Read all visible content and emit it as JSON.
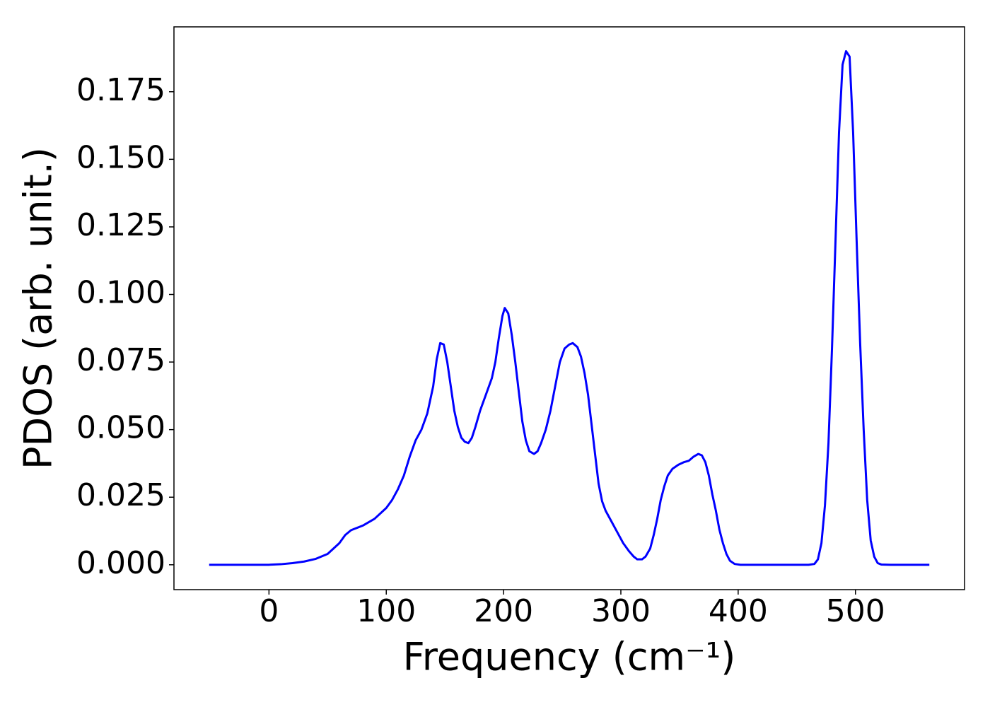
{
  "chart_data": {
    "type": "line",
    "xlabel": "Frequency (cm⁻¹)",
    "ylabel": "PDOS (arb. unit.)",
    "xlim": [
      -81,
      593
    ],
    "ylim": [
      -0.0092,
      0.199
    ],
    "xticks": [
      0,
      100,
      200,
      300,
      400,
      500
    ],
    "yticks": [
      {
        "value": 0,
        "label": "0.000"
      },
      {
        "value": 0.025,
        "label": "0.025"
      },
      {
        "value": 0.05,
        "label": "0.050"
      },
      {
        "value": 0.075,
        "label": "0.075"
      },
      {
        "value": 0.1,
        "label": "0.100"
      },
      {
        "value": 0.125,
        "label": "0.125"
      },
      {
        "value": 0.15,
        "label": "0.150"
      },
      {
        "value": 0.175,
        "label": "0.175"
      }
    ],
    "grid": false,
    "series": [
      {
        "color": "#0000ff",
        "x": [
          -51,
          -20,
          0,
          10,
          20,
          30,
          40,
          50,
          55,
          60,
          65,
          70,
          80,
          90,
          100,
          105,
          110,
          115,
          120,
          125,
          130,
          135,
          140,
          143,
          146,
          149,
          152,
          155,
          158,
          161,
          164,
          167,
          170,
          173,
          176,
          180,
          185,
          190,
          193,
          196,
          199,
          201,
          204,
          207,
          210,
          213,
          216,
          219,
          222,
          226,
          229,
          232,
          236,
          240,
          244,
          248,
          252,
          256,
          259,
          263,
          266,
          269,
          272,
          275,
          278,
          281,
          284,
          287,
          292,
          297,
          302,
          307,
          311,
          314,
          318,
          321,
          325,
          328,
          331,
          334,
          337,
          340,
          344,
          349,
          354,
          358,
          362,
          366,
          369,
          372,
          375,
          378,
          381,
          384,
          387,
          390,
          393,
          397,
          402,
          420,
          440,
          460,
          465,
          468,
          471,
          474,
          477,
          480,
          483,
          486,
          489,
          492,
          495,
          498,
          501,
          504,
          507,
          510,
          513,
          516,
          519,
          522,
          530,
          563
        ],
        "values": [
          0,
          0,
          0,
          0.0002,
          0.0006,
          0.0012,
          0.0022,
          0.004,
          0.006,
          0.008,
          0.011,
          0.0128,
          0.0145,
          0.017,
          0.021,
          0.024,
          0.028,
          0.033,
          0.04,
          0.046,
          0.05,
          0.056,
          0.066,
          0.076,
          0.082,
          0.0815,
          0.075,
          0.066,
          0.057,
          0.051,
          0.047,
          0.0455,
          0.045,
          0.047,
          0.051,
          0.057,
          0.063,
          0.069,
          0.075,
          0.084,
          0.092,
          0.095,
          0.093,
          0.085,
          0.075,
          0.064,
          0.053,
          0.046,
          0.042,
          0.041,
          0.042,
          0.045,
          0.05,
          0.057,
          0.066,
          0.075,
          0.08,
          0.0815,
          0.082,
          0.0805,
          0.077,
          0.071,
          0.063,
          0.052,
          0.041,
          0.03,
          0.0235,
          0.02,
          0.016,
          0.012,
          0.008,
          0.005,
          0.003,
          0.002,
          0.002,
          0.003,
          0.006,
          0.011,
          0.017,
          0.024,
          0.029,
          0.033,
          0.0355,
          0.037,
          0.038,
          0.0385,
          0.04,
          0.041,
          0.0405,
          0.038,
          0.033,
          0.026,
          0.02,
          0.013,
          0.008,
          0.004,
          0.0015,
          0.0003,
          0,
          0,
          0,
          0,
          0.0003,
          0.002,
          0.008,
          0.022,
          0.045,
          0.08,
          0.12,
          0.16,
          0.185,
          0.19,
          0.188,
          0.16,
          0.12,
          0.082,
          0.05,
          0.024,
          0.009,
          0.003,
          0.0006,
          0.0001,
          0,
          0
        ]
      }
    ]
  }
}
